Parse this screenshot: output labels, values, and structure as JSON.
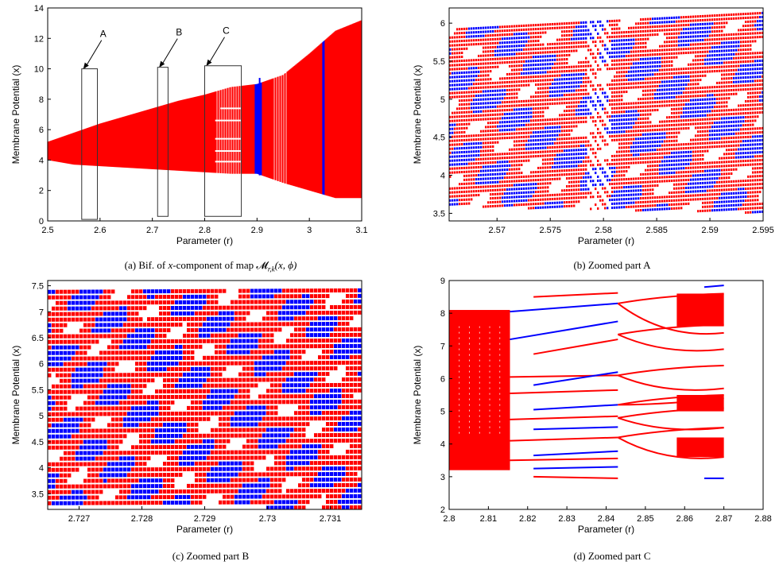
{
  "captions": {
    "a_prefix": "(a) Bif. of ",
    "a_var": "x",
    "a_mid": "-component of map ",
    "a_map": "𝓜",
    "a_sub": "r,k",
    "a_args": "(x, ϕ)",
    "b": "(b) Zoomed part A",
    "c": "(c) Zoomed part B",
    "d": "(d) Zoomed part C"
  },
  "colors": {
    "red": "#ff0000",
    "blue": "#0000ff",
    "axis": "#000000"
  },
  "chart_data": [
    {
      "id": "a",
      "type": "scatter",
      "xlabel": "Parameter (r)",
      "ylabel": "Membrane Potential (x)",
      "xlim": [
        2.5,
        3.1
      ],
      "ylim": [
        0,
        14
      ],
      "xticks": [
        "2.5",
        "2.6",
        "2.7",
        "2.8",
        "2.9",
        "3",
        "3.1"
      ],
      "yticks": [
        "0",
        "2",
        "4",
        "6",
        "8",
        "10",
        "12",
        "14"
      ],
      "series": [
        {
          "color": "red",
          "x": [
            2.5,
            2.55,
            2.6,
            2.65,
            2.7,
            2.75,
            2.8,
            2.85,
            2.9,
            2.95,
            3.0,
            3.05,
            3.1
          ],
          "y_min": [
            4.0,
            3.7,
            3.6,
            3.5,
            3.4,
            3.3,
            3.2,
            3.1,
            3.1,
            2.5,
            2.0,
            1.5,
            1.5
          ],
          "y_max": [
            5.2,
            5.8,
            6.4,
            6.9,
            7.4,
            7.9,
            8.3,
            8.8,
            9.0,
            9.6,
            11.0,
            12.5,
            13.2
          ]
        }
      ],
      "annotations": [
        {
          "label": "A",
          "x0": 2.565,
          "x1": 2.595,
          "y0": 0.1,
          "y1": 10.0
        },
        {
          "label": "B",
          "x0": 2.71,
          "x1": 2.73,
          "y0": 0.3,
          "y1": 10.1
        },
        {
          "label": "C",
          "x0": 2.8,
          "x1": 2.87,
          "y0": 0.3,
          "y1": 10.2
        }
      ],
      "grid": false
    },
    {
      "id": "b",
      "type": "scatter",
      "xlabel": "Parameter (r)",
      "ylabel": "Membrane Potential (x)",
      "xlim": [
        2.5655,
        2.595
      ],
      "ylim": [
        3.4,
        6.2
      ],
      "xticks": [
        "2.57",
        "2.575",
        "2.58",
        "2.585",
        "2.59",
        "2.595"
      ],
      "yticks": [
        "3.5",
        "4",
        "4.5",
        "5",
        "5.5",
        "6"
      ],
      "series": [
        {
          "color": "red",
          "x": [
            2.5655,
            2.595
          ],
          "y_min": [
            3.6,
            3.52
          ],
          "y_max": [
            5.93,
            6.15
          ]
        }
      ],
      "grid": false
    },
    {
      "id": "c",
      "type": "scatter",
      "xlabel": "Parameter (r)",
      "ylabel": "Membrane Potential (x)",
      "xlim": [
        2.7265,
        2.7315
      ],
      "ylim": [
        3.2,
        7.6
      ],
      "xticks": [
        "2.727",
        "2.728",
        "2.729",
        "2.73",
        "2.731"
      ],
      "yticks": [
        "3.5",
        "4",
        "4.5",
        "5",
        "5.5",
        "6",
        "6.5",
        "7",
        "7.5"
      ],
      "series": [
        {
          "color": "red",
          "x": [
            2.7265,
            2.7315
          ],
          "y_min": [
            3.27,
            3.27
          ],
          "y_max": [
            7.42,
            7.45
          ]
        }
      ],
      "grid": false
    },
    {
      "id": "d",
      "type": "scatter",
      "xlabel": "Parameter (r)",
      "ylabel": "Membrane Potential (x)",
      "xlim": [
        2.8,
        2.88
      ],
      "ylim": [
        2,
        9
      ],
      "xticks": [
        "2.8",
        "2.81",
        "2.82",
        "2.83",
        "2.84",
        "2.85",
        "2.86",
        "2.87",
        "2.88"
      ],
      "yticks": [
        "2",
        "3",
        "4",
        "5",
        "6",
        "7",
        "8",
        "9"
      ],
      "chaotic_band": {
        "x": [
          2.8,
          2.8155
        ],
        "y": [
          3.2,
          8.1
        ]
      },
      "branches": [
        {
          "color": "red",
          "x": [
            2.8215,
            2.843
          ],
          "y": [
            8.5,
            8.62
          ]
        },
        {
          "color": "blue",
          "x": [
            2.8155,
            2.843
          ],
          "y": [
            8.05,
            8.3
          ]
        },
        {
          "color": "blue",
          "x": [
            2.8155,
            2.843
          ],
          "y": [
            7.2,
            7.75
          ]
        },
        {
          "color": "red",
          "x": [
            2.8215,
            2.843
          ],
          "y": [
            6.75,
            7.2
          ]
        },
        {
          "color": "red",
          "x": [
            2.8155,
            2.843
          ],
          "y": [
            6.05,
            6.1
          ]
        },
        {
          "color": "blue",
          "x": [
            2.8215,
            2.843
          ],
          "y": [
            5.8,
            6.2
          ]
        },
        {
          "color": "red",
          "x": [
            2.8155,
            2.843
          ],
          "y": [
            5.55,
            5.65
          ]
        },
        {
          "color": "blue",
          "x": [
            2.8215,
            2.843
          ],
          "y": [
            5.05,
            5.2
          ]
        },
        {
          "color": "red",
          "x": [
            2.8155,
            2.843
          ],
          "y": [
            4.75,
            4.85
          ]
        },
        {
          "color": "blue",
          "x": [
            2.8215,
            2.843
          ],
          "y": [
            4.45,
            4.52
          ]
        },
        {
          "color": "red",
          "x": [
            2.8155,
            2.843
          ],
          "y": [
            4.1,
            4.2
          ]
        },
        {
          "color": "blue",
          "x": [
            2.8215,
            2.843
          ],
          "y": [
            3.65,
            3.78
          ]
        },
        {
          "color": "red",
          "x": [
            2.8155,
            2.843
          ],
          "y": [
            3.5,
            3.56
          ]
        },
        {
          "color": "blue",
          "x": [
            2.8215,
            2.843
          ],
          "y": [
            3.25,
            3.3
          ]
        },
        {
          "color": "red",
          "x": [
            2.8215,
            2.843
          ],
          "y": [
            3.0,
            2.95
          ]
        },
        {
          "color": "blue",
          "x": [
            2.865,
            2.87
          ],
          "y": [
            8.8,
            8.85
          ]
        },
        {
          "color": "blue",
          "x": [
            2.865,
            2.87
          ],
          "y": [
            2.95,
            2.95
          ]
        }
      ],
      "grid": false
    }
  ]
}
